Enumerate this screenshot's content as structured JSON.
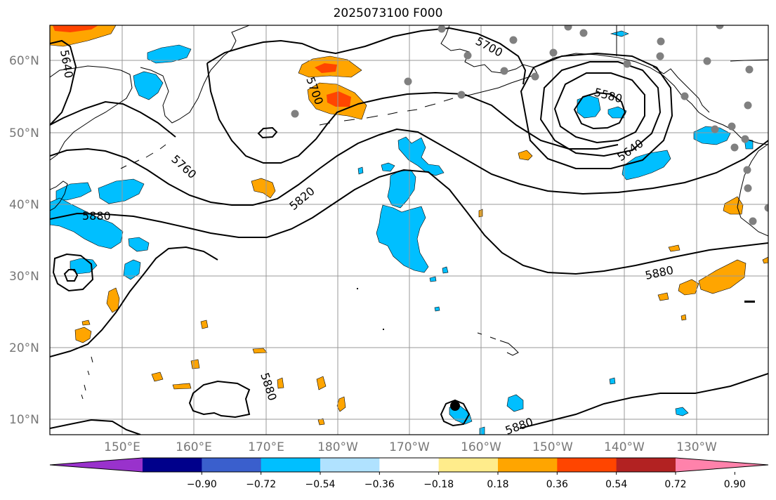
{
  "title": "2025073100 F000",
  "lat_labels": [
    "60°N",
    "50°N",
    "40°N",
    "30°N",
    "20°N",
    "10°N"
  ],
  "lon_labels": [
    "150°E",
    "160°E",
    "170°E",
    "180°W",
    "170°W",
    "160°W",
    "150°W",
    "140°W",
    "130°W"
  ],
  "contour_labels": [
    "5640",
    "5700",
    "5700",
    "5580",
    "5640",
    "5760",
    "5820",
    "5880",
    "5880",
    "5880",
    "5880"
  ],
  "colorbar": {
    "ticks": [
      "−0.90",
      "−0.72",
      "−0.54",
      "−0.36",
      "−0.18",
      "0.18",
      "0.36",
      "0.54",
      "0.72",
      "0.90"
    ],
    "colors": [
      "#9932cc",
      "#00008b",
      "#3a5fcd",
      "#00bfff",
      "#b0e2ff",
      "#ffffff",
      "#ffec8b",
      "#ffa500",
      "#ff4500",
      "#b22222",
      "#ff82ab"
    ]
  },
  "colors": {
    "positive_light": "#ffa500",
    "positive_strong": "#ff4500",
    "negative": "#00bfff",
    "stations": "#808080",
    "contours": "#000000"
  }
}
